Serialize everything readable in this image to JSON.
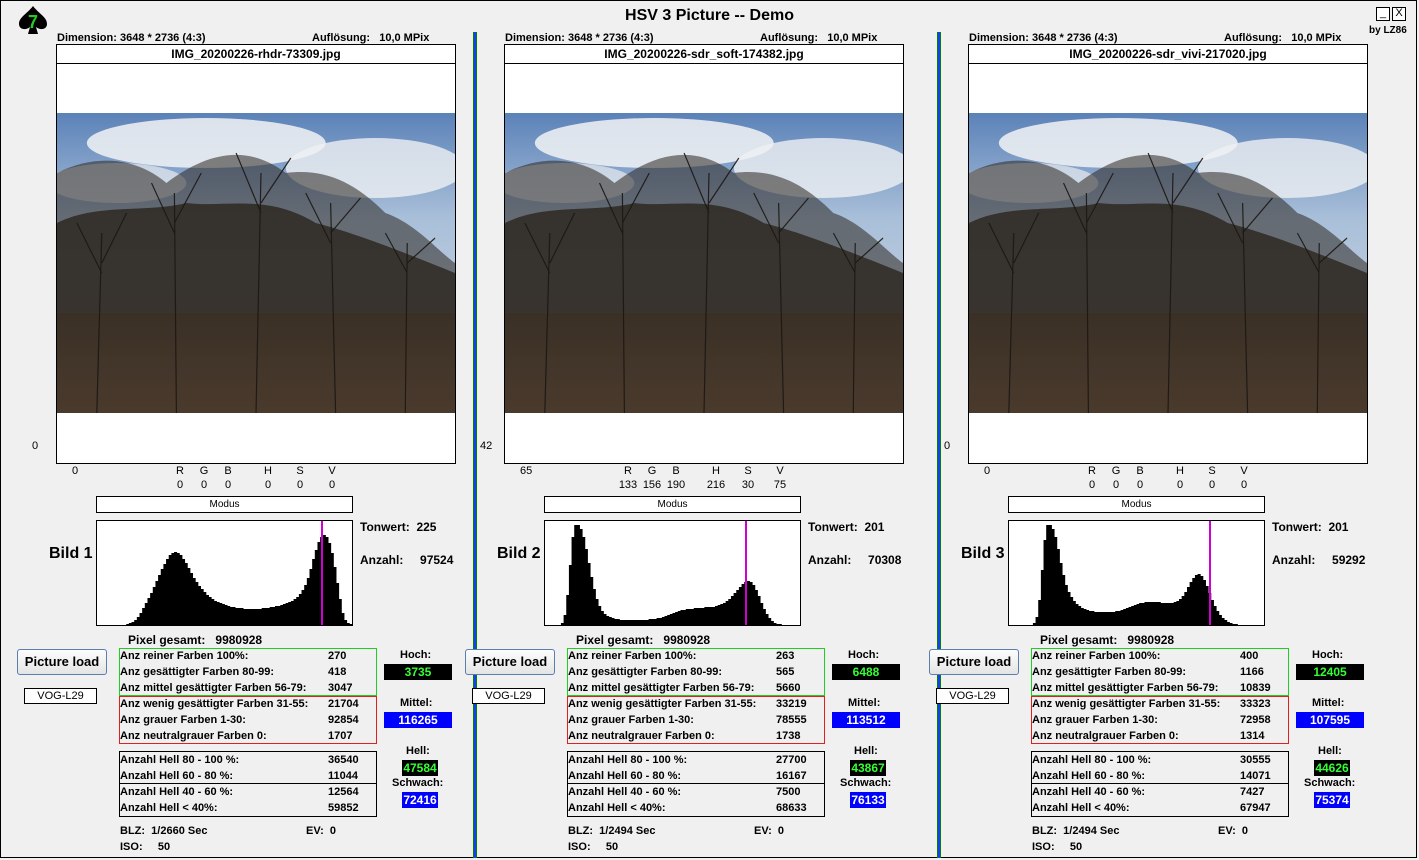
{
  "app": {
    "title": "HSV 3 Picture -- Demo",
    "author": "by LZ86",
    "minimize_label": "_",
    "close_label": "X",
    "logo_digit": "7"
  },
  "labels": {
    "dimension": "Dimension:",
    "aufloesung": "Auflösung:",
    "modus": "Modus",
    "tonwert": "Tonwert:",
    "anzahl": "Anzahl:",
    "pixel_gesamt": "Pixel gesamt:",
    "picture_load": "Picture load",
    "vog": "VOG-L29",
    "hoch": "Hoch:",
    "mittel": "Mittel:",
    "hell": "Hell:",
    "schwach": "Schwach:",
    "blz": "BLZ:",
    "ev": "EV:",
    "iso": "ISO:",
    "r": "R",
    "g": "G",
    "b": "B",
    "h": "H",
    "s": "S",
    "v": "V",
    "reine": "Anz reiner Farben 100%:",
    "gesaettigt": "Anz gesättigter Farben 80-99:",
    "mittelges": "Anz mittel gesättigter Farben 56-79:",
    "wenig": "Anz wenig gesättigter Farben 31-55:",
    "grau": "Anz grauer Farben 1-30:",
    "neutral": "Anz neutralgrauer Farben 0:",
    "hell80": "Anzahl Hell 80 - 100 %:",
    "hell60": "Anzahl Hell 60 - 80 %:",
    "hell40": "Anzahl Hell 40 - 60 %:",
    "hell0": "Anzahl Hell < 40%:"
  },
  "colors": {
    "separator_blue": "#1144ee",
    "marker": "#d000d0",
    "green_text": "#33ff33",
    "blue_badge": "#0000ff"
  },
  "panels": [
    {
      "dimension": "3648 * 2736 (4:3)",
      "resolution": "10,0 MPix",
      "filename": "IMG_20200226-rhdr-73309.jpg",
      "left_value": "0",
      "x_value": "0",
      "rgb": {
        "r": "0",
        "g": "0",
        "b": "0",
        "h": "0",
        "s": "0",
        "v": "0"
      },
      "bild": "Bild 1",
      "tonwert": "225",
      "anzahl": "97524",
      "pixel_total": "9980928",
      "stats": {
        "reine": "270",
        "gesaettigt": "418",
        "mittelges": "3047",
        "wenig": "21704",
        "grau": "92854",
        "neutral": "1707",
        "hell80": "36540",
        "hell60": "11044",
        "hell40": "12564",
        "hell0": "59852"
      },
      "hoch": "3735",
      "mittel": "116265",
      "hell": "47584",
      "schwach": "72416",
      "blz": "1/2660 Sec",
      "ev": "0",
      "iso": "50",
      "histogram": [
        0,
        0,
        0,
        0,
        0,
        0,
        0,
        0,
        0,
        0,
        0,
        1,
        2,
        3,
        5,
        8,
        12,
        17,
        22,
        27,
        32,
        38,
        44,
        50,
        56,
        61,
        66,
        70,
        72,
        73,
        72,
        70,
        66,
        62,
        57,
        52,
        47,
        43,
        39,
        36,
        33,
        30,
        28,
        26,
        24,
        23,
        22,
        21,
        20,
        19,
        18,
        18,
        17,
        17,
        17,
        16,
        16,
        16,
        16,
        16,
        16,
        16,
        17,
        17,
        17,
        18,
        18,
        19,
        19,
        20,
        21,
        22,
        23,
        24,
        26,
        28,
        31,
        35,
        40,
        47,
        56,
        66,
        75,
        83,
        88,
        90,
        88,
        82,
        72,
        58,
        42,
        26,
        12,
        5,
        2,
        1
      ]
    },
    {
      "dimension": "3648 * 2736 (4:3)",
      "resolution": "10,0 MPix",
      "filename": "IMG_20200226-sdr_soft-174382.jpg",
      "left_value": "42",
      "x_value": "65",
      "rgb": {
        "r": "133",
        "g": "156",
        "b": "190",
        "h": "216",
        "s": "30",
        "v": "75"
      },
      "bild": "Bild 2",
      "tonwert": "201",
      "anzahl": "70308",
      "pixel_total": "9980928",
      "stats": {
        "reine": "263",
        "gesaettigt": "565",
        "mittelges": "5660",
        "wenig": "33219",
        "grau": "78555",
        "neutral": "1738",
        "hell80": "27700",
        "hell60": "16167",
        "hell40": "7500",
        "hell0": "68633"
      },
      "hoch": "6488",
      "mittel": "113512",
      "hell": "43867",
      "schwach": "76133",
      "blz": "1/2494 Sec",
      "ev": "0",
      "iso": "50",
      "histogram": [
        0,
        0,
        0,
        0,
        0,
        0,
        2,
        10,
        30,
        60,
        88,
        100,
        100,
        96,
        88,
        76,
        62,
        48,
        36,
        26,
        19,
        14,
        11,
        9,
        8,
        7,
        6,
        6,
        5,
        5,
        5,
        5,
        5,
        5,
        5,
        5,
        5,
        5,
        5,
        6,
        6,
        6,
        7,
        7,
        8,
        9,
        10,
        11,
        12,
        13,
        14,
        15,
        15,
        16,
        16,
        16,
        17,
        17,
        17,
        17,
        18,
        18,
        18,
        18,
        19,
        20,
        21,
        22,
        24,
        26,
        29,
        32,
        35,
        38,
        41,
        43,
        44,
        43,
        40,
        35,
        29,
        22,
        16,
        11,
        7,
        4,
        2,
        1,
        1,
        0,
        0,
        0,
        0,
        0,
        0,
        0
      ]
    },
    {
      "dimension": "3648 * 2736 (4:3)",
      "resolution": "10,0 MPix",
      "filename": "IMG_20200226-sdr_vivi-217020.jpg",
      "left_value": "0",
      "x_value": "0",
      "rgb": {
        "r": "0",
        "g": "0",
        "b": "0",
        "h": "0",
        "s": "0",
        "v": "0"
      },
      "bild": "Bild 3",
      "tonwert": "201",
      "anzahl": "59292",
      "pixel_total": "9980928",
      "stats": {
        "reine": "400",
        "gesaettigt": "1166",
        "mittelges": "10839",
        "wenig": "33323",
        "grau": "72958",
        "neutral": "1314",
        "hell80": "30555",
        "hell60": "14071",
        "hell40": "7427",
        "hell0": "67947"
      },
      "hoch": "12405",
      "mittel": "107595",
      "hell": "44626",
      "schwach": "75374",
      "blz": "1/2494 Sec",
      "ev": "0",
      "iso": "50",
      "histogram": [
        0,
        0,
        0,
        0,
        0,
        0,
        0,
        0,
        0,
        2,
        8,
        25,
        55,
        85,
        100,
        100,
        96,
        88,
        76,
        62,
        50,
        40,
        33,
        28,
        24,
        21,
        19,
        17,
        16,
        15,
        14,
        14,
        13,
        13,
        13,
        13,
        13,
        13,
        13,
        13,
        14,
        14,
        15,
        16,
        17,
        18,
        19,
        20,
        21,
        22,
        22,
        23,
        23,
        23,
        23,
        23,
        23,
        22,
        22,
        22,
        22,
        22,
        23,
        24,
        26,
        29,
        33,
        38,
        43,
        47,
        50,
        51,
        49,
        45,
        39,
        32,
        25,
        19,
        14,
        10,
        7,
        5,
        3,
        2,
        1,
        1,
        0,
        0,
        0,
        0,
        0,
        0,
        0,
        0,
        0,
        0
      ]
    }
  ]
}
